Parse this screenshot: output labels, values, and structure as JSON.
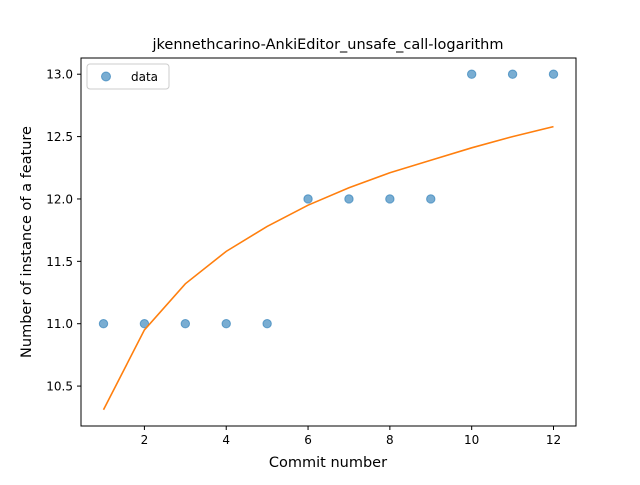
{
  "chart_data": {
    "type": "scatter",
    "title": "jkennethcarino-AnkiEditor_unsafe_call-logarithm",
    "xlabel": "Commit number",
    "ylabel": "Number of instance of a feature",
    "xlim": [
      0.45,
      12.55
    ],
    "ylim": [
      10.18,
      13.13
    ],
    "x_ticks": [
      2,
      4,
      6,
      8,
      10,
      12
    ],
    "y_ticks": [
      10.5,
      11.0,
      11.5,
      12.0,
      12.5,
      13.0
    ],
    "x_tick_labels": [
      "2",
      "4",
      "6",
      "8",
      "10",
      "12"
    ],
    "y_tick_labels": [
      "10.5",
      "11.0",
      "11.5",
      "12.0",
      "12.5",
      "13.0"
    ],
    "grid": false,
    "legend": {
      "placement": "upper-left",
      "entries": [
        "data"
      ]
    },
    "series": [
      {
        "name": "data",
        "kind": "scatter",
        "color": "#1f77b4",
        "x": [
          1,
          2,
          3,
          4,
          5,
          6,
          7,
          8,
          9,
          10,
          11,
          12
        ],
        "y": [
          11,
          11,
          11,
          11,
          11,
          12,
          12,
          12,
          12,
          13,
          13,
          13
        ]
      },
      {
        "kind": "line",
        "color": "#ff7f0e",
        "x": [
          1,
          2,
          3,
          4,
          5,
          6,
          7,
          8,
          9,
          10,
          11,
          12
        ],
        "y": [
          10.31,
          10.95,
          11.32,
          11.58,
          11.78,
          11.95,
          12.09,
          12.21,
          12.31,
          12.41,
          12.5,
          12.58
        ]
      }
    ]
  }
}
